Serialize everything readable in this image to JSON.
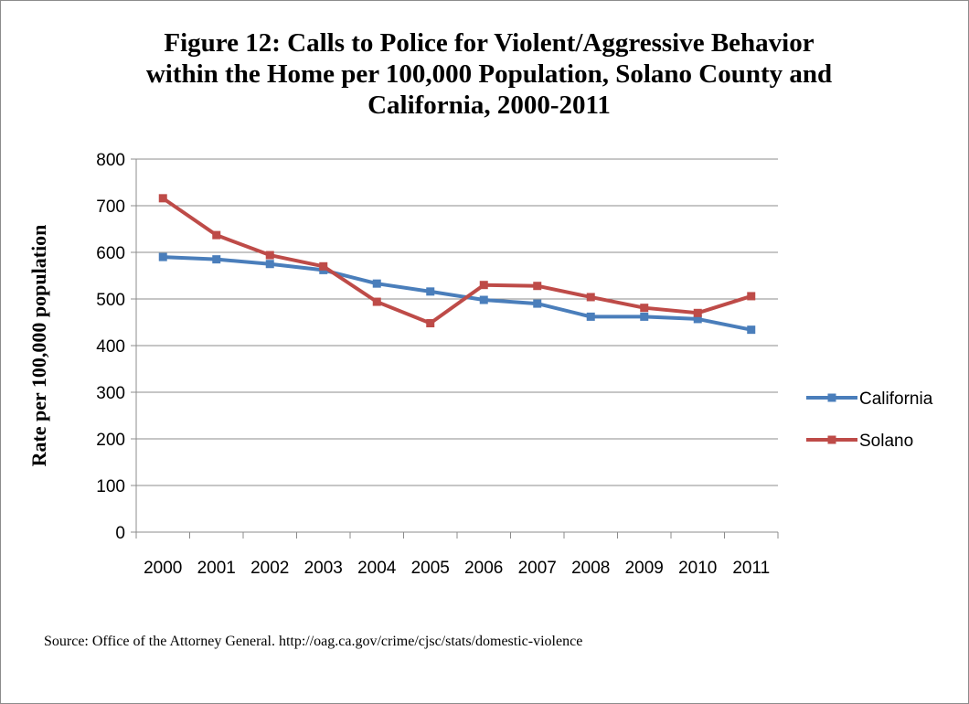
{
  "chart_data": {
    "type": "line",
    "title": "Figure 12: Calls to Police for Violent/Aggressive Behavior\nwithin the Home per 100,000 Population, Solano County and\nCalifornia, 2000-2011",
    "ylabel": "Rate per 100,000 population",
    "xlabel": "",
    "categories": [
      "2000",
      "2001",
      "2002",
      "2003",
      "2004",
      "2005",
      "2006",
      "2007",
      "2008",
      "2009",
      "2010",
      "2011"
    ],
    "ylim": [
      0,
      800
    ],
    "yticks": [
      0,
      100,
      200,
      300,
      400,
      500,
      600,
      700,
      800
    ],
    "grid": true,
    "legend_position": "right",
    "series": [
      {
        "name": "California",
        "color": "#4a7ebb",
        "values": [
          590,
          585,
          575,
          562,
          533,
          516,
          498,
          490,
          462,
          462,
          457,
          434
        ]
      },
      {
        "name": "Solano",
        "color": "#be4b48",
        "values": [
          716,
          637,
          594,
          570,
          494,
          448,
          530,
          528,
          504,
          481,
          470,
          506
        ]
      }
    ]
  },
  "source": "Source: Office of the Attorney General. http://oag.ca.gov/crime/cjsc/stats/domestic-violence"
}
